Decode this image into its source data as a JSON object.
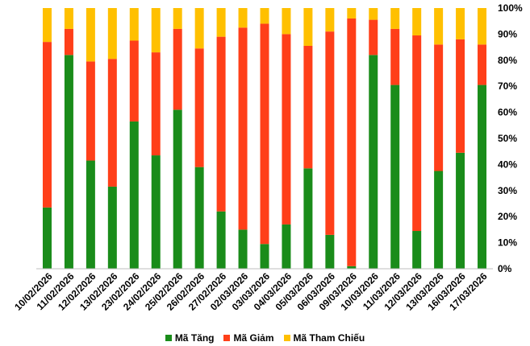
{
  "chart_data": {
    "type": "bar",
    "stacked": true,
    "percent": true,
    "categories": [
      "10/02/2026",
      "11/02/2026",
      "12/02/2026",
      "13/02/2026",
      "23/02/2026",
      "24/02/2026",
      "25/02/2026",
      "26/02/2026",
      "27/02/2026",
      "02/03/2026",
      "03/03/2026",
      "04/03/2026",
      "05/03/2026",
      "06/03/2026",
      "09/03/2026",
      "10/03/2026",
      "11/03/2026",
      "12/03/2026",
      "13/03/2026",
      "16/03/2026",
      "17/03/2026"
    ],
    "series": [
      {
        "name": "Mã Tăng",
        "color": "#1a8c1a",
        "values": [
          23.5,
          82,
          41.5,
          31.5,
          56.5,
          43.5,
          61,
          39,
          22,
          15,
          9.5,
          17,
          38.5,
          13,
          1,
          82,
          70.5,
          14.5,
          37.5,
          44.5,
          70.5
        ]
      },
      {
        "name": "Mã Giảm",
        "color": "#ff3f19",
        "values": [
          63.5,
          10,
          38,
          49,
          31,
          39.5,
          31,
          45.5,
          67,
          77.5,
          84.5,
          73,
          47,
          78,
          95,
          13.5,
          21.5,
          75,
          48.5,
          43.5,
          15.5
        ]
      },
      {
        "name": "Mã Tham Chiếu",
        "color": "#ffc000",
        "values": [
          13,
          8,
          20.5,
          19.5,
          12.5,
          17,
          8,
          15.5,
          11,
          7.5,
          6,
          10,
          14.5,
          9,
          4,
          4.5,
          8,
          10.5,
          14,
          12,
          14
        ]
      }
    ],
    "y_ticks": [
      "0%",
      "10%",
      "20%",
      "30%",
      "40%",
      "50%",
      "60%",
      "70%",
      "80%",
      "90%",
      "100%"
    ],
    "ylim": [
      0,
      100
    ],
    "y_axis_side": "right",
    "grid": false,
    "legend_position": "bottom"
  }
}
